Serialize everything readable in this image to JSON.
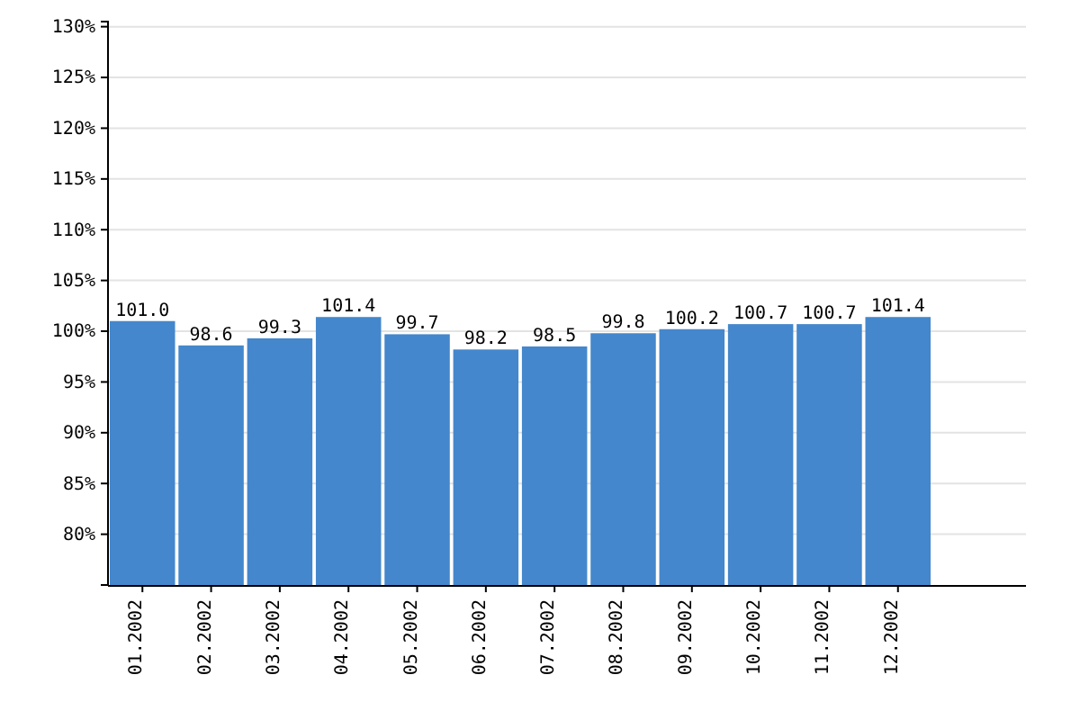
{
  "chart_data": {
    "type": "bar",
    "categories": [
      "01.2002",
      "02.2002",
      "03.2002",
      "04.2002",
      "05.2002",
      "06.2002",
      "07.2002",
      "08.2002",
      "09.2002",
      "10.2002",
      "11.2002",
      "12.2002"
    ],
    "values": [
      101.0,
      98.6,
      99.3,
      101.4,
      99.7,
      98.2,
      98.5,
      99.8,
      100.2,
      100.7,
      100.7,
      101.4
    ],
    "value_labels": [
      "101.0",
      "98.6",
      "99.3",
      "101.4",
      "99.7",
      "98.2",
      "98.5",
      "99.8",
      "100.2",
      "100.7",
      "100.7",
      "101.4"
    ],
    "color": "#4487cc",
    "ylim": [
      75,
      130.5
    ],
    "yticks": [
      {
        "value": 80,
        "label": "80%"
      },
      {
        "value": 85,
        "label": "85%"
      },
      {
        "value": 90,
        "label": "90%"
      },
      {
        "value": 95,
        "label": "95%"
      },
      {
        "value": 100,
        "label": "100%"
      },
      {
        "value": 105,
        "label": "105%"
      },
      {
        "value": 110,
        "label": "110%"
      },
      {
        "value": 115,
        "label": "115%"
      },
      {
        "value": 120,
        "label": "120%"
      },
      {
        "value": 125,
        "label": "125%"
      },
      {
        "value": 130,
        "label": "130%"
      }
    ],
    "grid": "y"
  }
}
